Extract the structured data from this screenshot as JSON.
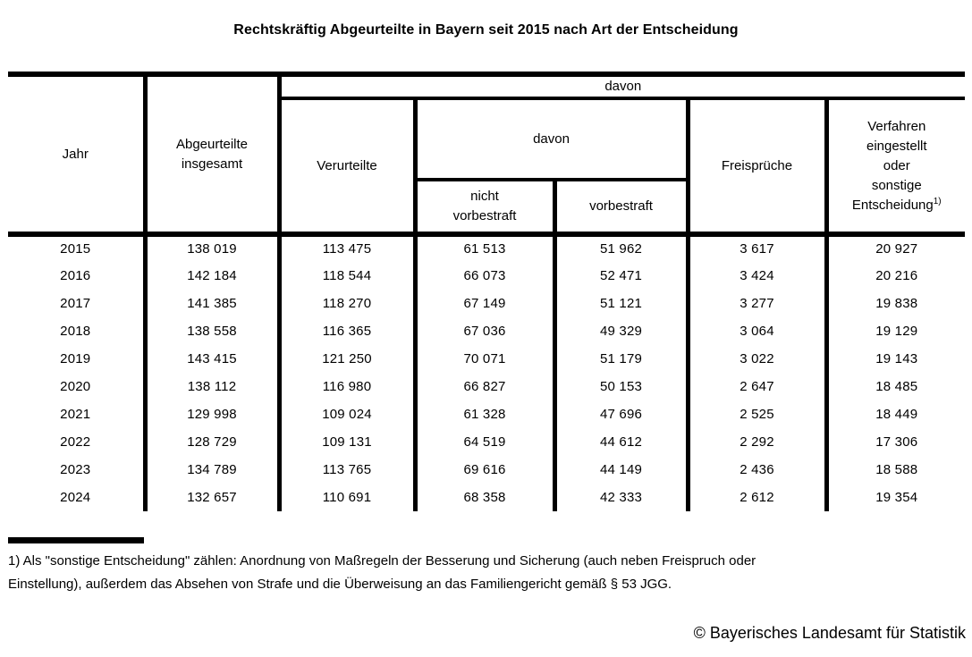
{
  "title": "Rechtskräftig Abgeurteilte in Bayern seit 2015 nach Art der Entscheidung",
  "table": {
    "header": {
      "jahr": "Jahr",
      "abgeurteilte_insgesamt": "Abgeurteilte\ninsgesamt",
      "davon_top": "davon",
      "verurteilte": "Verurteilte",
      "davon_inner": "davon",
      "nicht_vorbestraft": "nicht\nvorbestraft",
      "vorbestraft": "vorbestraft",
      "freisprueche": "Freisprüche",
      "verfahren_eingestellt": "Verfahren\neingestellt\noder\nsonstige\nEntscheidung",
      "footnote_marker": "1)"
    },
    "rows": [
      [
        "2015",
        "138 019",
        "113 475",
        "61 513",
        "51 962",
        "3 617",
        "20 927"
      ],
      [
        "2016",
        "142 184",
        "118 544",
        "66 073",
        "52 471",
        "3 424",
        "20 216"
      ],
      [
        "2017",
        "141 385",
        "118 270",
        "67 149",
        "51 121",
        "3 277",
        "19 838"
      ],
      [
        "2018",
        "138 558",
        "116 365",
        "67 036",
        "49 329",
        "3 064",
        "19 129"
      ],
      [
        "2019",
        "143 415",
        "121 250",
        "70 071",
        "51 179",
        "3 022",
        "19 143"
      ],
      [
        "2020",
        "138 112",
        "116 980",
        "66 827",
        "50 153",
        "2 647",
        "18 485"
      ],
      [
        "2021",
        "129 998",
        "109 024",
        "61 328",
        "47 696",
        "2 525",
        "18 449"
      ],
      [
        "2022",
        "128 729",
        "109 131",
        "64 519",
        "44 612",
        "2 292",
        "17 306"
      ],
      [
        "2023",
        "134 789",
        "113 765",
        "69 616",
        "44 149",
        "2 436",
        "18 588"
      ],
      [
        "2024",
        "132 657",
        "110 691",
        "68 358",
        "42 333",
        "2 612",
        "19 354"
      ]
    ]
  },
  "chart_data": {
    "type": "table",
    "title": "Rechtskräftig Abgeurteilte in Bayern seit 2015 nach Art der Entscheidung",
    "categories": [
      2015,
      2016,
      2017,
      2018,
      2019,
      2020,
      2021,
      2022,
      2023,
      2024
    ],
    "series": [
      {
        "name": "Abgeurteilte insgesamt",
        "values": [
          138019,
          142184,
          141385,
          138558,
          143415,
          138112,
          129998,
          128729,
          134789,
          132657
        ]
      },
      {
        "name": "Verurteilte",
        "values": [
          113475,
          118544,
          118270,
          116365,
          121250,
          116980,
          109024,
          109131,
          113765,
          110691
        ]
      },
      {
        "name": "Verurteilte - nicht vorbestraft",
        "values": [
          61513,
          66073,
          67149,
          67036,
          70071,
          66827,
          61328,
          64519,
          69616,
          68358
        ]
      },
      {
        "name": "Verurteilte - vorbestraft",
        "values": [
          51962,
          52471,
          51121,
          49329,
          51179,
          50153,
          47696,
          44612,
          44149,
          42333
        ]
      },
      {
        "name": "Freisprüche",
        "values": [
          3617,
          3424,
          3277,
          3064,
          3022,
          2647,
          2525,
          2292,
          2436,
          2612
        ]
      },
      {
        "name": "Verfahren eingestellt oder sonstige Entscheidung",
        "values": [
          20927,
          20216,
          19838,
          19129,
          19143,
          18485,
          18449,
          17306,
          18588,
          19354
        ]
      }
    ]
  },
  "footnote": {
    "lines": [
      "1) Als \"sonstige Entscheidung\" zählen: Anordnung von Maßregeln der Besserung und Sicherung (auch neben Freispruch oder",
      "Einstellung), außerdem das Absehen von Strafe und die Überweisung an das Familiengericht gemäß § 53 JGG."
    ]
  },
  "copyright": "© Bayerisches Landesamt für Statistik"
}
